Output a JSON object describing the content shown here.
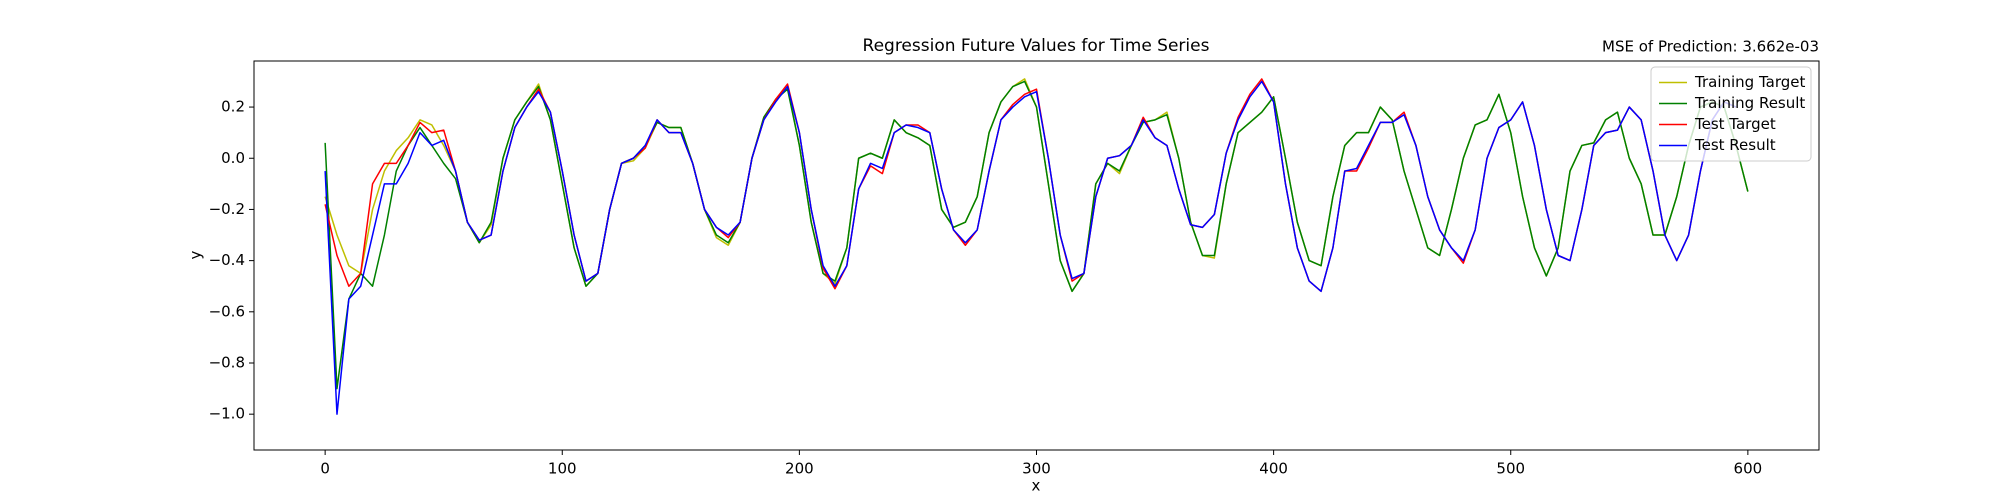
{
  "chart_data": {
    "type": "line",
    "title": "Regression Future Values for Time Series",
    "annotation": "MSE of Prediction: 3.662e-03",
    "x_label": "x",
    "y_label": "y",
    "x": [
      0,
      5,
      10,
      15,
      20,
      25,
      30,
      35,
      40,
      45,
      50,
      55,
      60,
      65,
      70,
      75,
      80,
      85,
      90,
      95,
      100,
      105,
      110,
      115,
      120,
      125,
      130,
      135,
      140,
      145,
      150,
      155,
      160,
      165,
      170,
      175,
      180,
      185,
      190,
      195,
      200,
      205,
      210,
      215,
      220,
      225,
      230,
      235,
      240,
      245,
      250,
      255,
      260,
      265,
      270,
      275,
      280,
      285,
      290,
      295,
      300,
      305,
      310,
      315,
      320,
      325,
      330,
      335,
      340,
      345,
      350,
      355,
      360,
      365,
      370,
      375,
      380,
      385,
      390,
      395,
      400,
      405,
      410,
      415,
      420,
      425,
      430,
      435,
      440,
      445,
      450,
      455,
      460,
      465,
      470,
      475,
      480,
      485,
      490,
      495,
      500,
      505,
      510,
      515,
      520,
      525,
      530,
      535,
      540,
      545,
      550,
      555,
      560,
      565,
      570,
      575,
      580,
      585,
      590,
      595,
      600
    ],
    "series": [
      {
        "name": "Training Target",
        "color": "#bfbf00",
        "values": [
          -0.15,
          -0.3,
          -0.42,
          -0.45,
          -0.2,
          -0.05,
          0.03,
          0.08,
          0.15,
          0.13,
          0.05,
          -0.05,
          -0.25,
          -0.33,
          -0.26,
          0.0,
          0.15,
          0.22,
          0.29,
          0.15,
          -0.1,
          -0.35,
          -0.5,
          -0.45,
          -0.2,
          -0.02,
          -0.01,
          0.04,
          0.14,
          0.12,
          0.12,
          -0.02,
          -0.2,
          -0.31,
          -0.34,
          -0.25,
          0.0,
          0.16,
          0.23,
          0.28,
          0.05,
          -0.25,
          -0.45,
          -0.49,
          -0.35,
          0.0,
          0.02,
          0.0,
          0.15,
          0.1,
          0.08,
          0.05,
          -0.2,
          -0.27,
          -0.25,
          -0.15,
          0.1,
          0.22,
          0.28,
          0.31,
          0.2,
          -0.1,
          -0.4,
          -0.52,
          -0.45,
          -0.1,
          -0.02,
          -0.06,
          0.05,
          0.14,
          0.15,
          0.18,
          0.0,
          -0.25,
          -0.38,
          -0.39,
          -0.1,
          0.1,
          0.14,
          0.18,
          0.24,
          0.0,
          -0.25,
          -0.4,
          -0.42,
          -0.15,
          0.05,
          0.1,
          0.1,
          0.2,
          0.15,
          -0.05,
          -0.2,
          -0.35,
          -0.38,
          -0.2,
          0.0,
          0.13,
          0.15,
          0.25,
          0.1,
          -0.15,
          -0.35,
          -0.46,
          -0.35,
          -0.05,
          0.05,
          0.06,
          0.15,
          0.18,
          0.0,
          -0.1,
          -0.3,
          -0.3,
          -0.15,
          0.05,
          0.2,
          0.22,
          0.2,
          0.05,
          -0.13
        ]
      },
      {
        "name": "Training Result",
        "color": "#008000",
        "values": [
          0.06,
          -0.9,
          -0.55,
          -0.45,
          -0.5,
          -0.3,
          -0.05,
          0.05,
          0.12,
          0.05,
          -0.02,
          -0.08,
          -0.25,
          -0.33,
          -0.25,
          0.0,
          0.15,
          0.22,
          0.28,
          0.15,
          -0.1,
          -0.35,
          -0.5,
          -0.45,
          -0.2,
          -0.02,
          0.0,
          0.05,
          0.14,
          0.12,
          0.12,
          -0.02,
          -0.2,
          -0.3,
          -0.33,
          -0.25,
          0.0,
          0.16,
          0.23,
          0.27,
          0.05,
          -0.25,
          -0.45,
          -0.48,
          -0.35,
          0.0,
          0.02,
          0.0,
          0.15,
          0.1,
          0.08,
          0.05,
          -0.2,
          -0.27,
          -0.25,
          -0.15,
          0.1,
          0.22,
          0.28,
          0.3,
          0.2,
          -0.1,
          -0.4,
          -0.52,
          -0.45,
          -0.1,
          -0.02,
          -0.05,
          0.05,
          0.14,
          0.15,
          0.17,
          0.0,
          -0.25,
          -0.38,
          -0.38,
          -0.1,
          0.1,
          0.14,
          0.18,
          0.24,
          0.0,
          -0.25,
          -0.4,
          -0.42,
          -0.15,
          0.05,
          0.1,
          0.1,
          0.2,
          0.15,
          -0.05,
          -0.2,
          -0.35,
          -0.38,
          -0.2,
          0.0,
          0.13,
          0.15,
          0.25,
          0.1,
          -0.15,
          -0.35,
          -0.46,
          -0.35,
          -0.05,
          0.05,
          0.06,
          0.15,
          0.18,
          0.0,
          -0.1,
          -0.3,
          -0.3,
          -0.15,
          0.05,
          0.2,
          0.22,
          0.2,
          0.05,
          -0.13
        ]
      },
      {
        "name": "Test Target",
        "color": "#ff0000",
        "values": [
          -0.18,
          -0.38,
          -0.5,
          -0.45,
          -0.1,
          -0.02,
          -0.02,
          0.05,
          0.14,
          0.1,
          0.11,
          -0.05,
          -0.25,
          -0.32,
          -0.3,
          -0.05,
          0.12,
          0.2,
          0.27,
          0.18,
          -0.05,
          -0.3,
          -0.48,
          -0.45,
          -0.2,
          -0.02,
          0.0,
          0.04,
          0.15,
          0.1,
          0.1,
          -0.02,
          -0.2,
          -0.27,
          -0.31,
          -0.25,
          0.0,
          0.15,
          0.23,
          0.29,
          0.1,
          -0.2,
          -0.43,
          -0.51,
          -0.42,
          -0.12,
          -0.03,
          -0.06,
          0.1,
          0.13,
          0.13,
          0.1,
          -0.12,
          -0.28,
          -0.34,
          -0.28,
          -0.05,
          0.15,
          0.21,
          0.25,
          0.27,
          0.0,
          -0.3,
          -0.48,
          -0.45,
          -0.15,
          0.0,
          0.01,
          0.05,
          0.16,
          0.08,
          0.05,
          -0.12,
          -0.26,
          -0.27,
          -0.22,
          0.02,
          0.16,
          0.25,
          0.31,
          0.22,
          -0.1,
          -0.35,
          -0.48,
          -0.52,
          -0.35,
          -0.05,
          -0.05,
          0.04,
          0.14,
          0.14,
          0.18,
          0.05,
          -0.15,
          -0.28,
          -0.35,
          -0.41,
          -0.28,
          0.0,
          0.12,
          0.15,
          0.22,
          0.05,
          -0.2,
          -0.38,
          -0.4,
          -0.2,
          0.05,
          0.1,
          0.11,
          0.2,
          0.15,
          -0.05,
          -0.3,
          -0.4,
          -0.3,
          -0.05,
          0.15,
          0.22,
          0.2,
          null
        ]
      },
      {
        "name": "Test Result",
        "color": "#0000ff",
        "values": [
          -0.05,
          -1.0,
          -0.55,
          -0.5,
          -0.3,
          -0.1,
          -0.1,
          -0.02,
          0.1,
          0.05,
          0.07,
          -0.05,
          -0.25,
          -0.32,
          -0.3,
          -0.05,
          0.12,
          0.2,
          0.26,
          0.18,
          -0.05,
          -0.3,
          -0.48,
          -0.45,
          -0.2,
          -0.02,
          0.0,
          0.05,
          0.15,
          0.1,
          0.1,
          -0.02,
          -0.2,
          -0.27,
          -0.3,
          -0.25,
          0.0,
          0.15,
          0.22,
          0.28,
          0.1,
          -0.2,
          -0.42,
          -0.5,
          -0.42,
          -0.12,
          -0.02,
          -0.04,
          0.1,
          0.13,
          0.12,
          0.1,
          -0.12,
          -0.28,
          -0.33,
          -0.28,
          -0.05,
          0.15,
          0.2,
          0.24,
          0.26,
          0.0,
          -0.3,
          -0.47,
          -0.45,
          -0.15,
          0.0,
          0.01,
          0.05,
          0.15,
          0.08,
          0.05,
          -0.12,
          -0.26,
          -0.27,
          -0.22,
          0.02,
          0.15,
          0.24,
          0.3,
          0.22,
          -0.1,
          -0.35,
          -0.48,
          -0.52,
          -0.35,
          -0.05,
          -0.04,
          0.05,
          0.14,
          0.14,
          0.17,
          0.05,
          -0.15,
          -0.28,
          -0.35,
          -0.4,
          -0.28,
          0.0,
          0.12,
          0.15,
          0.22,
          0.05,
          -0.2,
          -0.38,
          -0.4,
          -0.2,
          0.05,
          0.1,
          0.11,
          0.2,
          0.15,
          -0.05,
          -0.3,
          -0.4,
          -0.3,
          -0.05,
          0.15,
          0.22,
          0.2,
          null
        ]
      }
    ],
    "xlim": [
      -30,
      630
    ],
    "ylim": [
      -1.14,
      0.38
    ],
    "xticks": [
      0,
      100,
      200,
      300,
      400,
      500,
      600
    ],
    "yticks": [
      {
        "value": -1.0,
        "label": "−1.0"
      },
      {
        "value": -0.8,
        "label": "−0.8"
      },
      {
        "value": -0.6,
        "label": "−0.6"
      },
      {
        "value": -0.4,
        "label": "−0.4"
      },
      {
        "value": -0.2,
        "label": "−0.2"
      },
      {
        "value": 0.0,
        "label": "0.0"
      },
      0.2
    ],
    "grid": false,
    "legend": "upper right"
  }
}
